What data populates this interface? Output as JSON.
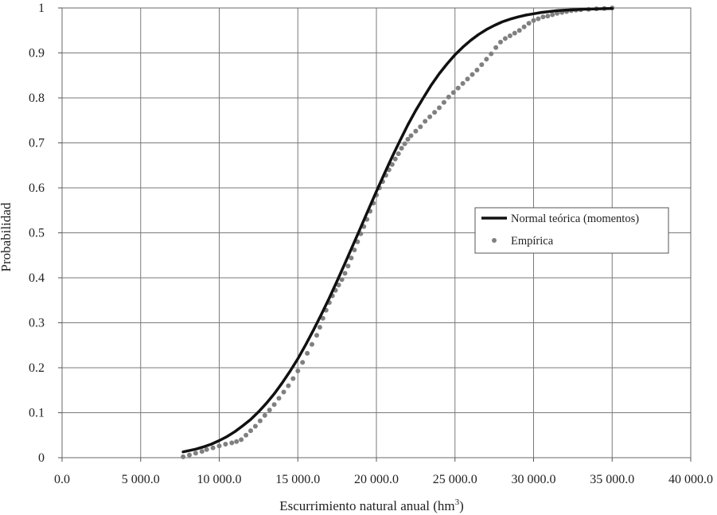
{
  "chart_data": {
    "type": "line",
    "xlabel": "Escurrimiento natural anual (hm",
    "xlabel_sup": "3",
    "xlabel_close": ")",
    "ylabel": "Probabilidad",
    "xlim": [
      0,
      40000
    ],
    "ylim": [
      0,
      1
    ],
    "x_ticks": [
      0,
      5000,
      10000,
      15000,
      20000,
      25000,
      30000,
      35000,
      40000
    ],
    "x_tick_labels": [
      "0.0",
      "5 000.0",
      "10 000.0",
      "15 000.0",
      "20 000.0",
      "25 000.0",
      "30 000.0",
      "35 000.0",
      "40 000.0"
    ],
    "y_ticks": [
      0,
      0.1,
      0.2,
      0.3,
      0.4,
      0.5,
      0.6,
      0.7,
      0.8,
      0.9,
      1
    ],
    "y_tick_labels": [
      "0",
      "0.1",
      "0.2",
      "0.3",
      "0.4",
      "0.5",
      "0.6",
      "0.7",
      "0.8",
      "0.9",
      "1"
    ],
    "grid": true,
    "legend_position": "right",
    "series": [
      {
        "name": "Normal teórica (momentos)",
        "kind": "line",
        "color": "#111111",
        "x": [
          7700,
          8500,
          9000,
          9500,
          10000,
          10500,
          11000,
          11500,
          12000,
          12500,
          13000,
          13500,
          14000,
          14500,
          15000,
          15500,
          16000,
          16500,
          17000,
          17500,
          18000,
          18500,
          19000,
          19500,
          20000,
          20500,
          21000,
          21500,
          22000,
          22500,
          23000,
          23500,
          24000,
          24500,
          25000,
          25500,
          26000,
          26500,
          27000,
          27500,
          28000,
          28500,
          29000,
          29500,
          30000,
          30500,
          31000,
          31500,
          32000,
          33000,
          34000,
          35000
        ],
        "y": [
          0.013,
          0.019,
          0.024,
          0.03,
          0.038,
          0.047,
          0.058,
          0.071,
          0.085,
          0.102,
          0.121,
          0.142,
          0.166,
          0.192,
          0.22,
          0.251,
          0.284,
          0.319,
          0.355,
          0.393,
          0.432,
          0.472,
          0.512,
          0.552,
          0.592,
          0.631,
          0.669,
          0.705,
          0.74,
          0.772,
          0.801,
          0.829,
          0.854,
          0.876,
          0.896,
          0.913,
          0.928,
          0.941,
          0.952,
          0.961,
          0.969,
          0.975,
          0.98,
          0.984,
          0.987,
          0.99,
          0.992,
          0.994,
          0.995,
          0.997,
          0.998,
          0.999
        ]
      },
      {
        "name": "Empírica",
        "kind": "scatter",
        "color": "#808080",
        "x": [
          7700,
          8100,
          8500,
          8900,
          9200,
          9600,
          10000,
          10400,
          10800,
          11100,
          11400,
          11700,
          12000,
          12300,
          12600,
          12900,
          13200,
          13500,
          13800,
          14100,
          14400,
          14700,
          15000,
          15300,
          15600,
          15900,
          16200,
          16400,
          16600,
          16800,
          17000,
          17200,
          17400,
          17600,
          17800,
          18000,
          18200,
          18400,
          18600,
          18800,
          19000,
          19200,
          19400,
          19600,
          19800,
          20000,
          20200,
          20400,
          20600,
          20800,
          21000,
          21200,
          21400,
          21600,
          21800,
          22000,
          22200,
          22500,
          22800,
          23100,
          23400,
          23700,
          24000,
          24300,
          24600,
          24900,
          25200,
          25500,
          25800,
          26100,
          26400,
          26700,
          27000,
          27300,
          27600,
          27900,
          28200,
          28500,
          28800,
          29100,
          29400,
          29700,
          30000,
          30300,
          30600,
          30900,
          31200,
          31500,
          31800,
          32100,
          32400,
          32700,
          33000,
          33500,
          34000,
          34500,
          35000
        ],
        "y": [
          0.002,
          0.006,
          0.01,
          0.014,
          0.018,
          0.022,
          0.026,
          0.03,
          0.033,
          0.036,
          0.04,
          0.05,
          0.06,
          0.07,
          0.082,
          0.094,
          0.106,
          0.118,
          0.132,
          0.146,
          0.16,
          0.176,
          0.193,
          0.212,
          0.232,
          0.252,
          0.272,
          0.29,
          0.31,
          0.328,
          0.345,
          0.36,
          0.372,
          0.384,
          0.396,
          0.41,
          0.426,
          0.444,
          0.462,
          0.48,
          0.498,
          0.514,
          0.53,
          0.548,
          0.566,
          0.584,
          0.6,
          0.614,
          0.628,
          0.64,
          0.652,
          0.664,
          0.676,
          0.688,
          0.698,
          0.708,
          0.716,
          0.726,
          0.736,
          0.748,
          0.758,
          0.768,
          0.778,
          0.79,
          0.802,
          0.812,
          0.822,
          0.832,
          0.842,
          0.852,
          0.862,
          0.874,
          0.886,
          0.898,
          0.912,
          0.924,
          0.932,
          0.938,
          0.944,
          0.95,
          0.958,
          0.966,
          0.972,
          0.976,
          0.98,
          0.982,
          0.985,
          0.988,
          0.99,
          0.992,
          0.994,
          0.995,
          0.996,
          0.997,
          0.998,
          0.999,
          1.0
        ]
      }
    ]
  }
}
